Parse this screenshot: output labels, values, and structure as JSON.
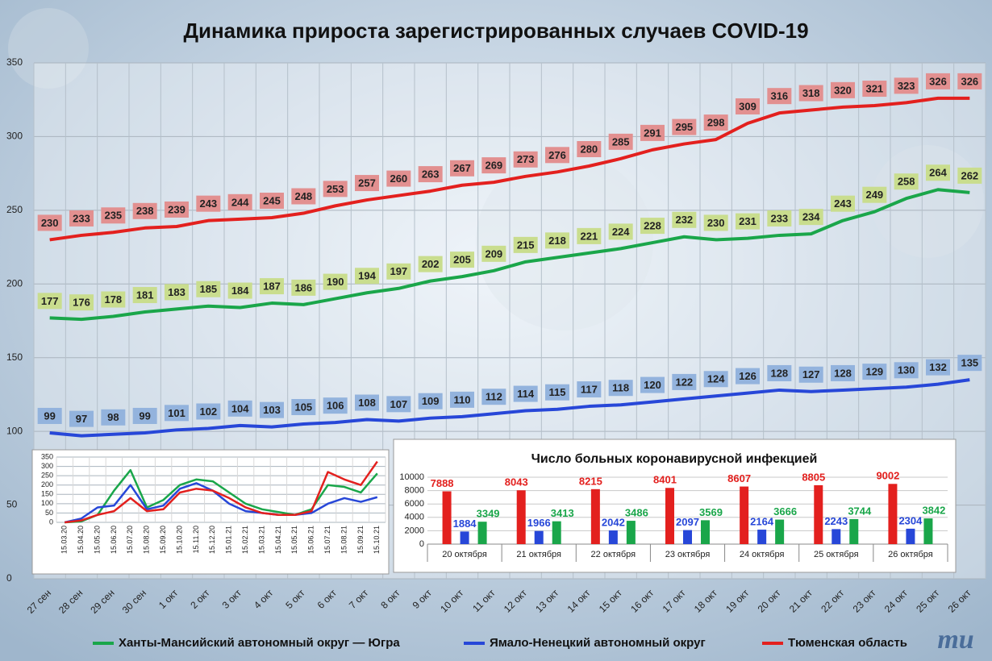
{
  "logo": "mu",
  "chart_data": [
    {
      "type": "line",
      "title": "Динамика прироста зарегистрированных случаев COVID-19",
      "categories": [
        "27 сен",
        "28 сен",
        "29 сен",
        "30 сен",
        "1 окт",
        "2 окт",
        "3 окт",
        "4 окт",
        "5 окт",
        "6 окт",
        "7 окт",
        "8 окт",
        "9 окт",
        "10 окт",
        "11 окт",
        "12 окт",
        "13 окт",
        "14 окт",
        "15 окт",
        "16 окт",
        "17 окт",
        "18 окт",
        "19 окт",
        "20 окт",
        "21 окт",
        "22 окт",
        "23 окт",
        "24 окт",
        "25 окт",
        "26 окт"
      ],
      "series": [
        {
          "name": "Ханты-Мансийский автономный округ — Югра",
          "color": "#1aa64a",
          "label_color": "#c9dd8e",
          "values": [
            177,
            176,
            178,
            181,
            183,
            185,
            184,
            187,
            186,
            190,
            194,
            197,
            202,
            205,
            209,
            215,
            218,
            221,
            224,
            228,
            232,
            230,
            231,
            233,
            234,
            243,
            249,
            258,
            264,
            262
          ]
        },
        {
          "name": "Ямало-Ненецкий автономный округ",
          "color": "#2747d8",
          "label_color": "#93b3dd",
          "values": [
            99,
            97,
            98,
            99,
            101,
            102,
            104,
            103,
            105,
            106,
            108,
            107,
            109,
            110,
            112,
            114,
            115,
            117,
            118,
            120,
            122,
            124,
            126,
            128,
            127,
            128,
            129,
            130,
            132,
            135
          ]
        },
        {
          "name": "Тюменская область",
          "color": "#e3201e",
          "label_color": "#e29090",
          "values": [
            230,
            233,
            235,
            238,
            239,
            243,
            244,
            245,
            248,
            253,
            257,
            260,
            263,
            267,
            269,
            273,
            276,
            280,
            285,
            291,
            295,
            298,
            309,
            316,
            318,
            320,
            321,
            323,
            326,
            326
          ]
        }
      ],
      "ylim": [
        0,
        350
      ],
      "yticks": [
        0,
        50,
        100,
        150,
        200,
        250,
        300,
        350
      ],
      "grid": true,
      "legend": "bottom"
    },
    {
      "type": "line",
      "categories": [
        "15.03.20",
        "15.04.20",
        "15.05.20",
        "15.06.20",
        "15.07.20",
        "15.08.20",
        "15.09.20",
        "15.10.20",
        "15.11.20",
        "15.12.20",
        "15.01.21",
        "15.02.21",
        "15.03.21",
        "15.04.21",
        "15.05.21",
        "15.06.21",
        "15.07.21",
        "15.08.21",
        "15.09.21",
        "15.10.21"
      ],
      "series": [
        {
          "color": "#1aa64a",
          "values": [
            0,
            5,
            40,
            170,
            280,
            80,
            120,
            200,
            230,
            220,
            160,
            100,
            70,
            55,
            40,
            70,
            200,
            190,
            160,
            262
          ]
        },
        {
          "color": "#2747d8",
          "values": [
            0,
            20,
            80,
            90,
            200,
            70,
            90,
            180,
            210,
            170,
            100,
            60,
            50,
            40,
            40,
            50,
            100,
            130,
            110,
            135
          ]
        },
        {
          "color": "#e3201e",
          "values": [
            0,
            10,
            40,
            60,
            130,
            60,
            70,
            160,
            180,
            170,
            130,
            80,
            50,
            40,
            40,
            60,
            270,
            230,
            200,
            326
          ]
        }
      ],
      "ylim": [
        0,
        350
      ],
      "yticks": [
        0,
        50,
        100,
        150,
        200,
        250,
        300,
        350
      ],
      "grid": true
    },
    {
      "type": "bar",
      "title": "Число больных коронавирусной инфекцией",
      "categories": [
        "20 октября",
        "21 октября",
        "22 октября",
        "23 октября",
        "24 октября",
        "25 октября",
        "26 октября"
      ],
      "series": [
        {
          "color": "#e3201e",
          "values": [
            7888,
            8043,
            8215,
            8401,
            8607,
            8805,
            9002
          ]
        },
        {
          "color": "#2747d8",
          "values": [
            1884,
            1966,
            2042,
            2097,
            2164,
            2243,
            2304
          ]
        },
        {
          "color": "#1aa64a",
          "values": [
            3349,
            3413,
            3486,
            3569,
            3666,
            3744,
            3842
          ]
        }
      ],
      "ylim": [
        0,
        10000
      ],
      "yticks": [
        0,
        2000,
        4000,
        6000,
        8000,
        10000
      ],
      "grid": true
    }
  ]
}
